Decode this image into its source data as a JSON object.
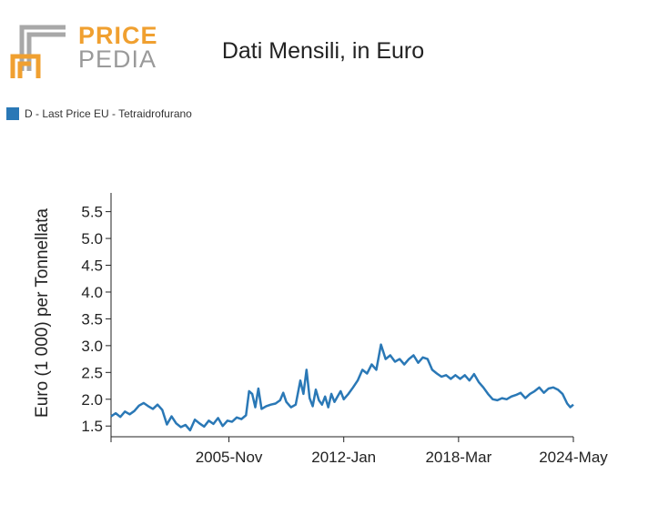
{
  "brand": {
    "line1": "PRICE",
    "line2": "PEDIA"
  },
  "colors": {
    "series": "#2a78b6",
    "logo_orange": "#f0a030",
    "logo_gray": "#a0a0a0"
  },
  "chart_data": {
    "type": "line",
    "title": "Dati Mensili, in Euro",
    "ylabel": "Euro (1 000) per Tonnellata",
    "xlabel": "",
    "ylim": [
      1.3,
      5.85
    ],
    "yticks": [
      1.5,
      2.0,
      2.5,
      3.0,
      3.5,
      4.0,
      4.5,
      5.0,
      5.5
    ],
    "ytick_labels": [
      "1.5",
      "2.0",
      "2.5",
      "3.0",
      "3.5",
      "4.0",
      "4.5",
      "5.0",
      "5.5"
    ],
    "xlim": [
      "1999-07",
      "2024-05"
    ],
    "xticks": [
      "1999-07",
      "2005-11",
      "2012-01",
      "2018-03",
      "2024-05"
    ],
    "xtick_labels": [
      "",
      "2005-Nov",
      "2012-Jan",
      "2018-Mar",
      "2024-May"
    ],
    "grid": false,
    "legend_position": "top-left",
    "series": [
      {
        "name": "D - Last Price EU - Tetraidrofurano",
        "points": [
          [
            "1999-07",
            1.68
          ],
          [
            "1999-10",
            1.74
          ],
          [
            "2000-01",
            1.67
          ],
          [
            "2000-04",
            1.77
          ],
          [
            "2000-07",
            1.72
          ],
          [
            "2000-10",
            1.78
          ],
          [
            "2001-01",
            1.88
          ],
          [
            "2001-04",
            1.93
          ],
          [
            "2001-07",
            1.87
          ],
          [
            "2001-10",
            1.82
          ],
          [
            "2002-01",
            1.9
          ],
          [
            "2002-04",
            1.8
          ],
          [
            "2002-07",
            1.53
          ],
          [
            "2002-10",
            1.68
          ],
          [
            "2003-01",
            1.55
          ],
          [
            "2003-04",
            1.48
          ],
          [
            "2003-07",
            1.52
          ],
          [
            "2003-10",
            1.42
          ],
          [
            "2004-01",
            1.62
          ],
          [
            "2004-04",
            1.55
          ],
          [
            "2004-07",
            1.49
          ],
          [
            "2004-10",
            1.6
          ],
          [
            "2005-01",
            1.54
          ],
          [
            "2005-04",
            1.65
          ],
          [
            "2005-07",
            1.5
          ],
          [
            "2005-10",
            1.6
          ],
          [
            "2006-01",
            1.58
          ],
          [
            "2006-04",
            1.66
          ],
          [
            "2006-07",
            1.63
          ],
          [
            "2006-10",
            1.7
          ],
          [
            "2006-12",
            2.15
          ],
          [
            "2007-02",
            2.1
          ],
          [
            "2007-04",
            1.85
          ],
          [
            "2007-06",
            2.2
          ],
          [
            "2007-08",
            1.82
          ],
          [
            "2007-11",
            1.87
          ],
          [
            "2008-02",
            1.9
          ],
          [
            "2008-05",
            1.92
          ],
          [
            "2008-08",
            1.98
          ],
          [
            "2008-10",
            2.12
          ],
          [
            "2008-12",
            1.95
          ],
          [
            "2009-03",
            1.85
          ],
          [
            "2009-06",
            1.9
          ],
          [
            "2009-09",
            2.35
          ],
          [
            "2009-11",
            2.1
          ],
          [
            "2010-01",
            2.55
          ],
          [
            "2010-03",
            2.02
          ],
          [
            "2010-05",
            1.87
          ],
          [
            "2010-07",
            2.18
          ],
          [
            "2010-09",
            1.98
          ],
          [
            "2010-11",
            1.9
          ],
          [
            "2011-01",
            2.05
          ],
          [
            "2011-03",
            1.85
          ],
          [
            "2011-05",
            2.1
          ],
          [
            "2011-07",
            1.95
          ],
          [
            "2011-09",
            2.05
          ],
          [
            "2011-11",
            2.15
          ],
          [
            "2012-01",
            2.0
          ],
          [
            "2012-04",
            2.1
          ],
          [
            "2012-07",
            2.22
          ],
          [
            "2012-10",
            2.35
          ],
          [
            "2013-01",
            2.55
          ],
          [
            "2013-04",
            2.48
          ],
          [
            "2013-07",
            2.65
          ],
          [
            "2013-10",
            2.55
          ],
          [
            "2014-01",
            3.02
          ],
          [
            "2014-04",
            2.75
          ],
          [
            "2014-07",
            2.82
          ],
          [
            "2014-10",
            2.7
          ],
          [
            "2015-01",
            2.75
          ],
          [
            "2015-04",
            2.65
          ],
          [
            "2015-07",
            2.75
          ],
          [
            "2015-10",
            2.82
          ],
          [
            "2016-01",
            2.68
          ],
          [
            "2016-04",
            2.78
          ],
          [
            "2016-07",
            2.75
          ],
          [
            "2016-10",
            2.55
          ],
          [
            "2017-01",
            2.48
          ],
          [
            "2017-04",
            2.42
          ],
          [
            "2017-07",
            2.45
          ],
          [
            "2017-10",
            2.38
          ],
          [
            "2018-01",
            2.45
          ],
          [
            "2018-04",
            2.38
          ],
          [
            "2018-07",
            2.45
          ],
          [
            "2018-10",
            2.35
          ],
          [
            "2019-01",
            2.47
          ],
          [
            "2019-04",
            2.32
          ],
          [
            "2019-07",
            2.22
          ],
          [
            "2019-10",
            2.1
          ],
          [
            "2020-01",
            2.0
          ],
          [
            "2020-04",
            1.98
          ],
          [
            "2020-07",
            2.02
          ],
          [
            "2020-10",
            2.0
          ],
          [
            "2021-01",
            2.05
          ],
          [
            "2021-04",
            2.08
          ],
          [
            "2021-07",
            2.12
          ],
          [
            "2021-10",
            2.02
          ],
          [
            "2022-01",
            2.1
          ],
          [
            "2022-04",
            2.15
          ],
          [
            "2022-07",
            2.22
          ],
          [
            "2022-10",
            2.12
          ],
          [
            "2023-01",
            2.2
          ],
          [
            "2023-04",
            2.22
          ],
          [
            "2023-07",
            2.18
          ],
          [
            "2023-10",
            2.1
          ],
          [
            "2024-01",
            1.92
          ],
          [
            "2024-03",
            1.85
          ],
          [
            "2024-05",
            1.9
          ]
        ]
      }
    ]
  }
}
